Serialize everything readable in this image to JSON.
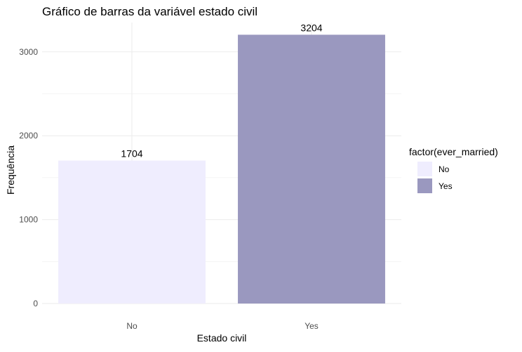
{
  "chart_data": {
    "type": "bar",
    "title": "Gráfico de barras da variável estado civil",
    "xlabel": "Estado civil",
    "ylabel": "Frequência",
    "categories": [
      "No",
      "Yes"
    ],
    "values": [
      1704,
      3204
    ],
    "data_labels": [
      "1704",
      "3204"
    ],
    "bar_colors": [
      "#efedfe",
      "#9a98bf"
    ],
    "ylim": [
      0,
      3350
    ],
    "yticks": [
      0,
      1000,
      2000,
      3000
    ],
    "ytick_labels": [
      "0",
      "1000",
      "2000",
      "3000"
    ],
    "grid": true,
    "legend": {
      "title": "factor(ever_married)",
      "placement": "right",
      "entries": [
        {
          "label": "No",
          "color": "#efedfe"
        },
        {
          "label": "Yes",
          "color": "#9a98bf"
        }
      ]
    }
  }
}
